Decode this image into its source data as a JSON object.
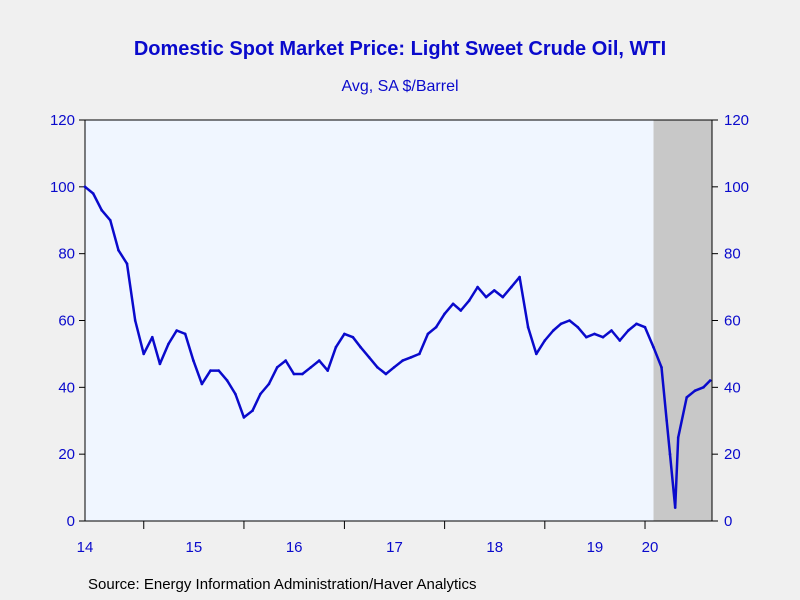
{
  "header": {
    "title": "Domestic Spot Market Price: Light Sweet Crude Oil, WTI",
    "subtitle": "Avg, SA $/Barrel"
  },
  "footer": {
    "source": "Source:  Energy Information Administration/Haver Analytics"
  },
  "colors": {
    "series": "#0a0acc",
    "plot_background": "#f0f6ff",
    "recession_shade": "#c8c8c8",
    "page_background": "#f0f0f0"
  },
  "chart_data": {
    "type": "line",
    "title": "Domestic Spot Market Price: Light Sweet Crude Oil, WTI",
    "subtitle": "Avg, SA $/Barrel",
    "ylim": [
      0,
      120
    ],
    "y_ticks": [
      "0",
      "20",
      "40",
      "60",
      "80",
      "100",
      "120"
    ],
    "x_tick_labels": [
      "14",
      "15",
      "16",
      "17",
      "18",
      "19",
      "20"
    ],
    "xlim": [
      "2014-06-01",
      "2020-09-01"
    ],
    "grid": false,
    "dual_y_axis": true,
    "shaded_region": {
      "start": "2020-02-01",
      "end": "2020-09-01"
    },
    "series": [
      {
        "x": [
          "2014-06",
          "2014-07",
          "2014-08",
          "2014-09",
          "2014-10",
          "2014-11",
          "2014-12",
          "2015-01",
          "2015-02",
          "2015-03",
          "2015-04",
          "2015-05",
          "2015-06",
          "2015-07",
          "2015-08",
          "2015-09",
          "2015-10",
          "2015-11",
          "2015-12",
          "2016-01",
          "2016-02",
          "2016-03",
          "2016-04",
          "2016-05",
          "2016-06",
          "2016-07",
          "2016-08",
          "2016-09",
          "2016-10",
          "2016-11",
          "2016-12",
          "2017-01",
          "2017-02",
          "2017-03",
          "2017-04",
          "2017-05",
          "2017-06",
          "2017-07",
          "2017-08",
          "2017-09",
          "2017-10",
          "2017-11",
          "2017-12",
          "2018-01",
          "2018-02",
          "2018-03",
          "2018-04",
          "2018-05",
          "2018-06",
          "2018-07",
          "2018-08",
          "2018-09",
          "2018-10",
          "2018-11",
          "2018-12",
          "2019-01",
          "2019-02",
          "2019-03",
          "2019-04",
          "2019-05",
          "2019-06",
          "2019-07",
          "2019-08",
          "2019-09",
          "2019-10",
          "2019-11",
          "2019-12",
          "2020-01",
          "2020-02",
          "2020-03",
          "2020-03-20",
          "2020-04",
          "2020-04-20",
          "2020-05",
          "2020-06",
          "2020-07",
          "2020-08",
          "2020-08-25"
        ],
        "values": [
          100,
          98,
          93,
          90,
          81,
          77,
          60,
          50,
          55,
          47,
          53,
          57,
          56,
          48,
          41,
          45,
          45,
          42,
          38,
          31,
          33,
          38,
          41,
          46,
          48,
          44,
          44,
          46,
          48,
          45,
          52,
          56,
          55,
          52,
          49,
          46,
          44,
          46,
          48,
          49,
          50,
          56,
          58,
          62,
          65,
          63,
          66,
          70,
          67,
          69,
          67,
          70,
          73,
          58,
          50,
          54,
          57,
          59,
          60,
          58,
          55,
          56,
          55,
          57,
          54,
          57,
          59,
          58,
          52,
          46,
          30,
          20,
          4,
          25,
          37,
          39,
          40,
          42
        ]
      }
    ]
  }
}
